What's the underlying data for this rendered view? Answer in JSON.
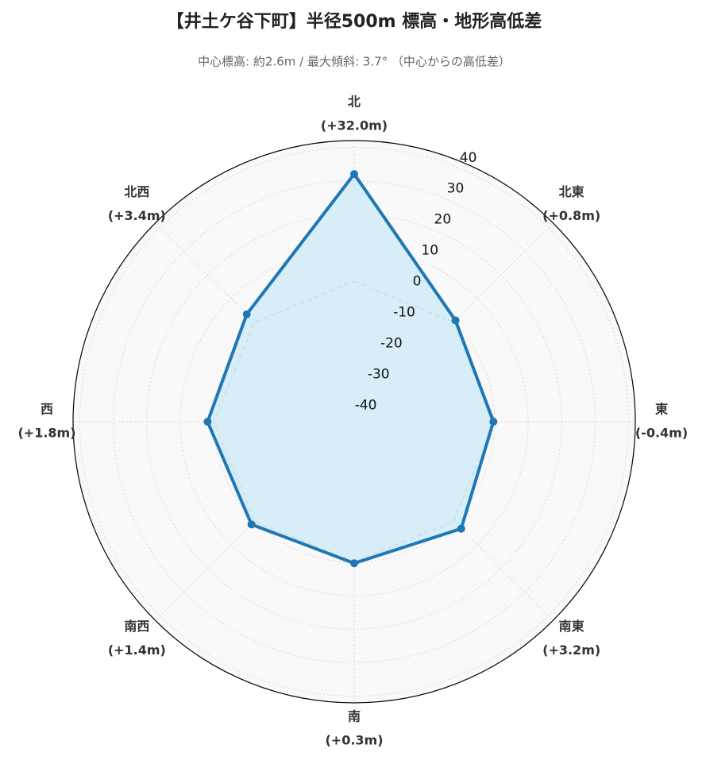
{
  "chart_data": {
    "type": "radar",
    "title": "【井土ケ谷下町】半径500m 標高・地形高低差",
    "subtitle": "中心標高: 約2.6m / 最大傾斜: 3.7° （中心からの高低差）",
    "categories": [
      "北",
      "北東",
      "東",
      "南東",
      "南",
      "南西",
      "西",
      "北西"
    ],
    "value_labels": [
      "(+32.0m)",
      "(+0.8m)",
      "(-0.4m)",
      "(+3.2m)",
      "(+0.3m)",
      "(+1.4m)",
      "(+1.8m)",
      "(+3.4m)"
    ],
    "series": [
      {
        "color": "#1f77b4",
        "fill": "#d3ecf8",
        "values": [
          32.0,
          0.8,
          -0.4,
          3.2,
          0.3,
          1.4,
          1.8,
          3.4
        ]
      },
      {
        "color": "#888888",
        "dashed": true,
        "values": [
          0,
          0,
          0,
          0,
          0,
          0,
          0,
          0
        ]
      }
    ],
    "rlim": [
      -42,
      42
    ],
    "rticks": [
      -40,
      -30,
      -20,
      -10,
      0,
      10,
      20,
      30,
      40
    ],
    "grid": true
  }
}
